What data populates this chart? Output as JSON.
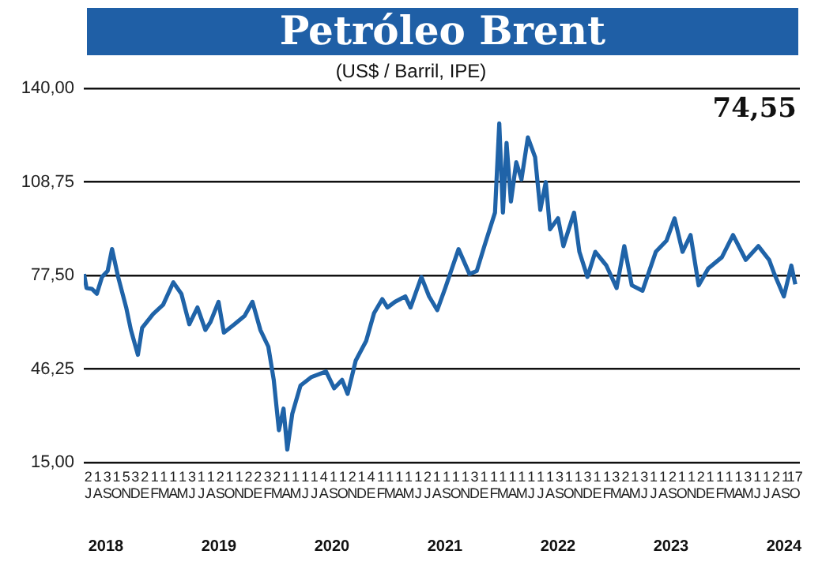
{
  "chart_data": {
    "type": "line",
    "title": "Petróleo Brent",
    "subtitle": "(US$ / Barril, IPE)",
    "annotations": [
      "74,55",
      "2018",
      "2019",
      "2020",
      "2021",
      "2022",
      "2023",
      "2024"
    ],
    "x": [
      "2018-07-02",
      "2018-07-10",
      "2018-07-28",
      "2018-08-13",
      "2018-08-30",
      "2018-09-17",
      "2018-10-01",
      "2018-10-21",
      "2018-11-16",
      "2018-12-01",
      "2018-12-24",
      "2019-01-07",
      "2019-02-11",
      "2019-03-14",
      "2019-04-16",
      "2019-05-12",
      "2019-06-07",
      "2019-07-03",
      "2019-07-29",
      "2019-08-15",
      "2019-09-10",
      "2019-09-27",
      "2019-11-01",
      "2019-12-03",
      "2019-12-29",
      "2020-01-24",
      "2020-02-18",
      "2020-03-06",
      "2020-03-23",
      "2020-04-07",
      "2020-04-19",
      "2020-05-05",
      "2020-06-01",
      "2020-07-05",
      "2020-08-23",
      "2020-09-18",
      "2020-10-14",
      "2020-11-01",
      "2020-11-27",
      "2020-12-31",
      "2021-01-26",
      "2021-02-20",
      "2021-03-08",
      "2021-04-02",
      "2021-05-05",
      "2021-05-22",
      "2021-06-26",
      "2021-07-21",
      "2021-08-17",
      "2021-09-12",
      "2021-10-25",
      "2021-11-29",
      "2021-12-23",
      "2022-01-17",
      "2022-02-19",
      "2022-03-04",
      "2022-03-16",
      "2022-03-28",
      "2022-04-11",
      "2022-04-28",
      "2022-05-15",
      "2022-06-05",
      "2022-06-28",
      "2022-07-15",
      "2022-08-02",
      "2022-08-16",
      "2022-09-11",
      "2022-09-28",
      "2022-11-02",
      "2022-11-19",
      "2022-12-15",
      "2023-01-10",
      "2023-02-14",
      "2023-03-18",
      "2023-04-12",
      "2023-05-06",
      "2023-06-10",
      "2023-07-23",
      "2023-08-27",
      "2023-09-22",
      "2023-10-18",
      "2023-11-13",
      "2023-12-09",
      "2024-01-10",
      "2024-02-22",
      "2024-03-29",
      "2024-05-09",
      "2024-06-19",
      "2024-07-24",
      "2024-08-10",
      "2024-09-10",
      "2024-10-04",
      "2024-10-17"
    ],
    "series": [
      {
        "color": "#1f63a8",
        "values": [
          78,
          73.3,
          73,
          71.4,
          77,
          79,
          86.3,
          77,
          66.8,
          59.3,
          51,
          60,
          64.6,
          67.7,
          75.2,
          71.4,
          61.2,
          66.8,
          59.3,
          62,
          68.7,
          58.4,
          61.2,
          64,
          68.7,
          59.3,
          53.7,
          42.6,
          25.8,
          33,
          19.3,
          31.3,
          40.7,
          43.5,
          45.4,
          39.8,
          42.6,
          37.9,
          49.1,
          55.6,
          64.9,
          69.6,
          66.8,
          68.7,
          70.5,
          66.8,
          77,
          70.5,
          65.9,
          73.3,
          86.3,
          78,
          79,
          87.3,
          98.5,
          128.3,
          98.5,
          121.8,
          102.2,
          115.3,
          109.6,
          123.6,
          117,
          99.4,
          108.7,
          92.9,
          96.6,
          87.3,
          98.5,
          85.4,
          77,
          85.4,
          80.8,
          73.3,
          87.3,
          74.2,
          72.4,
          85.4,
          89.1,
          96.6,
          85.4,
          91,
          74.2,
          79.9,
          83.6,
          91,
          82.7,
          87.3,
          82.7,
          78,
          70.5,
          80.8,
          74.55
        ]
      }
    ],
    "ylim": [
      15,
      140
    ],
    "yticks": [
      {
        "value": 15,
        "label": "15,00"
      },
      {
        "value": 46.25,
        "label": "46,25"
      },
      {
        "value": 77.5,
        "label": "77,50"
      },
      {
        "value": 108.75,
        "label": "108,75"
      },
      {
        "value": 140,
        "label": "140,00"
      }
    ],
    "xlim": [
      "2018-07-01",
      "2024-11-01"
    ],
    "xticks": [
      {
        "value": "2018-07-16",
        "label": "2\nJ"
      },
      {
        "value": "2018-08-16",
        "label": "1\nA"
      },
      {
        "value": "2018-09-16",
        "label": "3\nS"
      },
      {
        "value": "2018-10-16",
        "label": "1\nO"
      },
      {
        "value": "2018-11-16",
        "label": "5\nN"
      },
      {
        "value": "2018-12-16",
        "label": "3\nD"
      },
      {
        "value": "2019-01-16",
        "label": "2\nE"
      },
      {
        "value": "2019-02-16",
        "label": "1\nF"
      },
      {
        "value": "2019-03-16",
        "label": "1\nM"
      },
      {
        "value": "2019-04-16",
        "label": "1\nA"
      },
      {
        "value": "2019-05-16",
        "label": "1\nM"
      },
      {
        "value": "2019-06-16",
        "label": "3\nJ"
      },
      {
        "value": "2019-07-16",
        "label": "1\nJ"
      },
      {
        "value": "2019-08-16",
        "label": "1\nA"
      },
      {
        "value": "2019-09-16",
        "label": "2\nS"
      },
      {
        "value": "2019-10-16",
        "label": "1\nO"
      },
      {
        "value": "2019-11-16",
        "label": "1\nN"
      },
      {
        "value": "2019-12-16",
        "label": "2\nD"
      },
      {
        "value": "2020-01-16",
        "label": "2\nE"
      },
      {
        "value": "2020-02-16",
        "label": "3\nF"
      },
      {
        "value": "2020-03-16",
        "label": "2\nM"
      },
      {
        "value": "2020-04-16",
        "label": "1\nA"
      },
      {
        "value": "2020-05-16",
        "label": "1\nM"
      },
      {
        "value": "2020-06-16",
        "label": "1\nJ"
      },
      {
        "value": "2020-07-16",
        "label": "1\nJ"
      },
      {
        "value": "2020-08-16",
        "label": "4\nA"
      },
      {
        "value": "2020-09-16",
        "label": "1\nS"
      },
      {
        "value": "2020-10-16",
        "label": "1\nO"
      },
      {
        "value": "2020-11-16",
        "label": "2\nN"
      },
      {
        "value": "2020-12-16",
        "label": "1\nD"
      },
      {
        "value": "2021-01-16",
        "label": "4\nE"
      },
      {
        "value": "2021-02-16",
        "label": "1\nF"
      },
      {
        "value": "2021-03-16",
        "label": "1\nM"
      },
      {
        "value": "2021-04-16",
        "label": "1\nA"
      },
      {
        "value": "2021-05-16",
        "label": "1\nM"
      },
      {
        "value": "2021-06-16",
        "label": "1\nJ"
      },
      {
        "value": "2021-07-16",
        "label": "2\nJ"
      },
      {
        "value": "2021-08-16",
        "label": "1\nA"
      },
      {
        "value": "2021-09-16",
        "label": "1\nS"
      },
      {
        "value": "2021-10-16",
        "label": "1\nO"
      },
      {
        "value": "2021-11-16",
        "label": "1\nN"
      },
      {
        "value": "2021-12-16",
        "label": "3\nD"
      },
      {
        "value": "2022-01-16",
        "label": "1\nE"
      },
      {
        "value": "2022-02-16",
        "label": "1\nF"
      },
      {
        "value": "2022-03-16",
        "label": "1\nM"
      },
      {
        "value": "2022-04-16",
        "label": "1\nA"
      },
      {
        "value": "2022-05-16",
        "label": "1\nM"
      },
      {
        "value": "2022-06-16",
        "label": "1\nJ"
      },
      {
        "value": "2022-07-16",
        "label": "1\nJ"
      },
      {
        "value": "2022-08-16",
        "label": "1\nA"
      },
      {
        "value": "2022-09-16",
        "label": "3\nS"
      },
      {
        "value": "2022-10-16",
        "label": "1\nO"
      },
      {
        "value": "2022-11-16",
        "label": "1\nN"
      },
      {
        "value": "2022-12-16",
        "label": "3\nD"
      },
      {
        "value": "2023-01-16",
        "label": "1\nE"
      },
      {
        "value": "2023-02-16",
        "label": "1\nF"
      },
      {
        "value": "2023-03-16",
        "label": "3\nM"
      },
      {
        "value": "2023-04-16",
        "label": "2\nA"
      },
      {
        "value": "2023-05-16",
        "label": "1\nM"
      },
      {
        "value": "2023-06-16",
        "label": "3\nJ"
      },
      {
        "value": "2023-07-16",
        "label": "1\nJ"
      },
      {
        "value": "2023-08-16",
        "label": "1\nA"
      },
      {
        "value": "2023-09-16",
        "label": "2\nS"
      },
      {
        "value": "2023-10-16",
        "label": "1\nO"
      },
      {
        "value": "2023-11-16",
        "label": "1\nN"
      },
      {
        "value": "2023-12-16",
        "label": "2\nD"
      },
      {
        "value": "2024-01-16",
        "label": "1\nE"
      },
      {
        "value": "2024-02-16",
        "label": "1\nF"
      },
      {
        "value": "2024-03-16",
        "label": "1\nM"
      },
      {
        "value": "2024-04-16",
        "label": "1\nA"
      },
      {
        "value": "2024-05-16",
        "label": "3\nM"
      },
      {
        "value": "2024-06-16",
        "label": "1\nJ"
      },
      {
        "value": "2024-07-16",
        "label": "1\nJ"
      },
      {
        "value": "2024-08-16",
        "label": "2\nA"
      },
      {
        "value": "2024-09-16",
        "label": "1\nS"
      },
      {
        "value": "2024-10-16",
        "label": "17\nO"
      }
    ],
    "grid": "y",
    "legend": false,
    "marker": "none",
    "line_style": "solid"
  }
}
